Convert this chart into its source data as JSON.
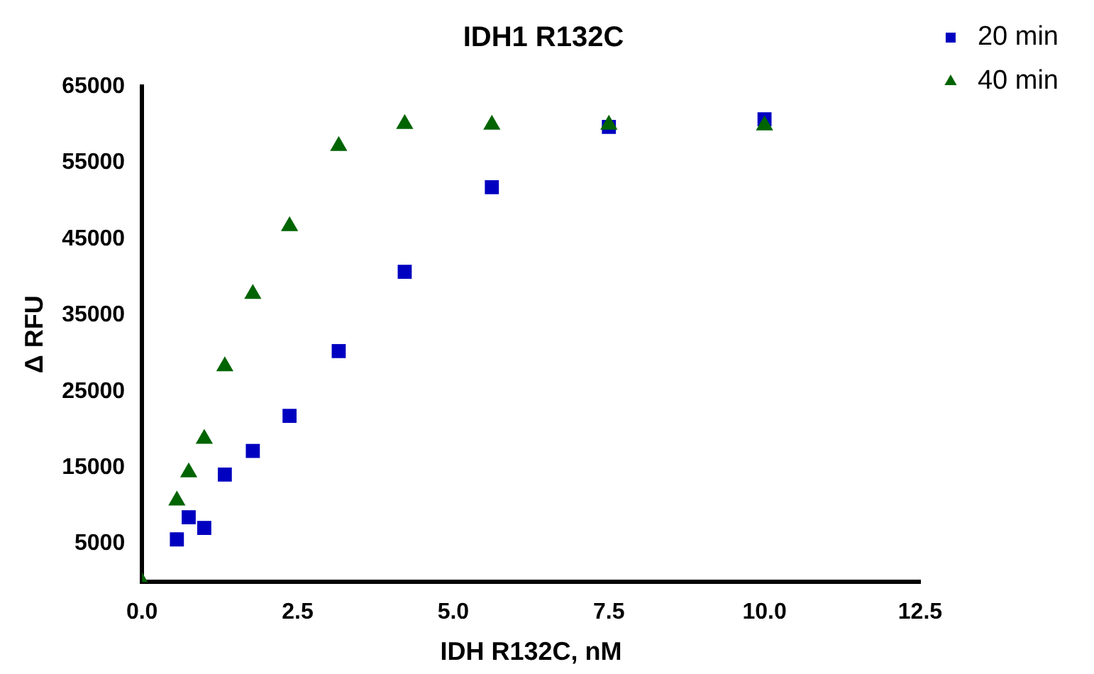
{
  "chart_data": {
    "type": "scatter",
    "title": "IDH1 R132C",
    "xlabel": "IDH R132C, nM",
    "ylabel": "Δ RFU",
    "xlim": [
      0,
      12.5
    ],
    "xticks": [
      {
        "value": 0,
        "label": "0.0"
      },
      {
        "value": 2.5,
        "label": "2.5"
      },
      {
        "value": 5,
        "label": "5.0"
      },
      {
        "value": 7.5,
        "label": "7.5"
      },
      {
        "value": 10,
        "label": "10.0"
      },
      {
        "value": 12.5,
        "label": "12.5"
      }
    ],
    "ylim": [
      0,
      65000
    ],
    "yticks": [
      5000,
      15000,
      25000,
      35000,
      45000,
      55000,
      65000
    ],
    "grid": false,
    "legend": "right",
    "series": [
      {
        "name": "20 min",
        "color": "#0000c0",
        "marker": "square",
        "x": [
          0.56,
          0.75,
          1.0,
          1.33,
          1.78,
          2.37,
          3.16,
          4.22,
          5.62,
          7.5,
          10
        ],
        "values": [
          5600,
          8500,
          7100,
          14100,
          17200,
          21800,
          30300,
          40700,
          51800,
          59700,
          60700
        ]
      },
      {
        "name": "40 min",
        "color": "#006400",
        "marker": "triangle",
        "x": [
          0,
          0.56,
          0.75,
          1.0,
          1.33,
          1.78,
          2.37,
          3.16,
          4.22,
          5.62,
          7.5,
          10
        ],
        "values": [
          0,
          10700,
          14400,
          18800,
          28300,
          37800,
          46700,
          57200,
          60100,
          60000,
          60000,
          59900
        ]
      }
    ]
  }
}
